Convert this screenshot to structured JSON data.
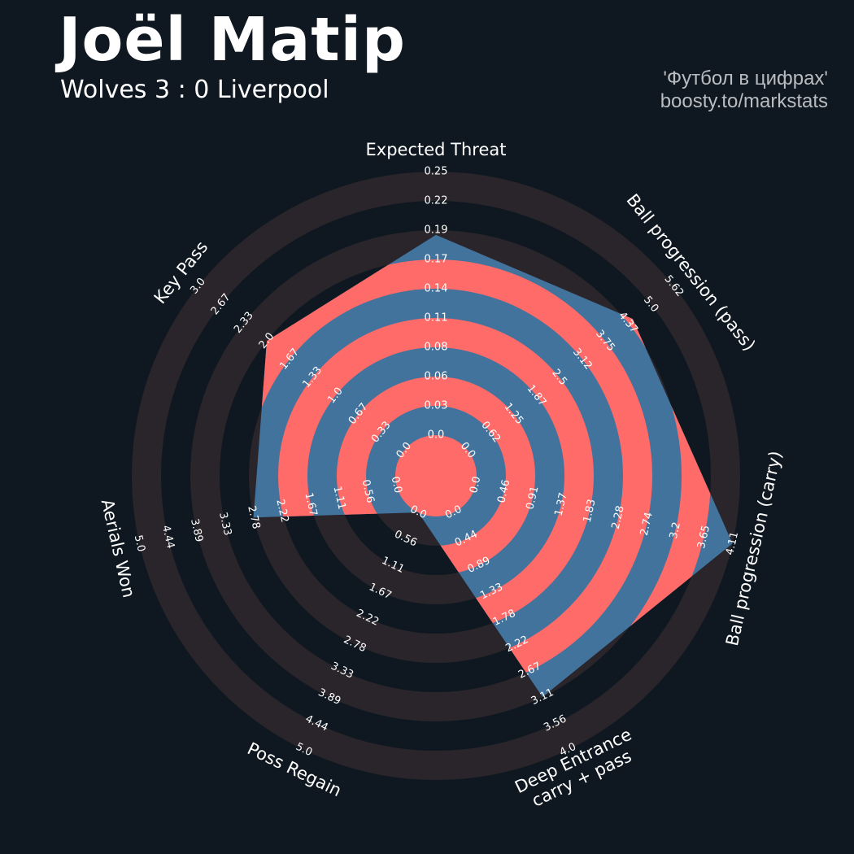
{
  "header": {
    "title": "Joël Matip",
    "subtitle": "Wolves 3 : 0 Liverpool",
    "credit_line1": "'Футбол в цифрах'",
    "credit_line2": "boosty.to/markstats"
  },
  "colors": {
    "background": "#0f1820",
    "ring_dark": "#29252b",
    "ring_highlight": "#ff6b68",
    "fill": "#41739d",
    "text": "#ffffff"
  },
  "chart_data": {
    "type": "radar",
    "params": [
      {
        "label": [
          "Expected Threat"
        ],
        "value": 0.19,
        "ticks": [
          "0.0",
          "0.03",
          "0.06",
          "0.08",
          "0.11",
          "0.14",
          "0.17",
          "0.19",
          "0.22",
          "0.25"
        ]
      },
      {
        "label": [
          "Ball progression (pass)"
        ],
        "value": 4.5,
        "ticks": [
          "0.0",
          "0.62",
          "1.25",
          "1.87",
          "2.5",
          "3.12",
          "3.75",
          "4.37",
          "5.0",
          "5.62"
        ]
      },
      {
        "label": [
          "Ball progression (carry)"
        ],
        "value": 4.11,
        "ticks": [
          "0.0",
          "0.46",
          "0.91",
          "1.37",
          "1.83",
          "2.28",
          "2.74",
          "3.2",
          "3.65",
          "4.11"
        ]
      },
      {
        "label": [
          "Deep Entrance",
          "carry + pass"
        ],
        "value": 3.11,
        "ticks": [
          "0.0",
          "0.44",
          "0.89",
          "1.33",
          "1.78",
          "2.22",
          "2.67",
          "3.11",
          "3.56",
          "4.0"
        ]
      },
      {
        "label": [
          "Poss Regain"
        ],
        "value": 0.0,
        "ticks": [
          "0.0",
          "0.56",
          "1.11",
          "1.67",
          "2.22",
          "2.78",
          "3.33",
          "3.89",
          "4.44",
          "5.0"
        ]
      },
      {
        "label": [
          "Aerials Won"
        ],
        "value": 2.78,
        "ticks": [
          "0.0",
          "0.56",
          "1.11",
          "1.67",
          "2.22",
          "2.78",
          "3.33",
          "3.89",
          "4.44",
          "5.0"
        ]
      },
      {
        "label": [
          "Key Pass"
        ],
        "value": 2.0,
        "ticks": [
          "0.0",
          "0.33",
          "0.67",
          "1.0",
          "1.33",
          "1.67",
          "2.0",
          "2.33",
          "2.67",
          "3.0"
        ]
      }
    ]
  }
}
